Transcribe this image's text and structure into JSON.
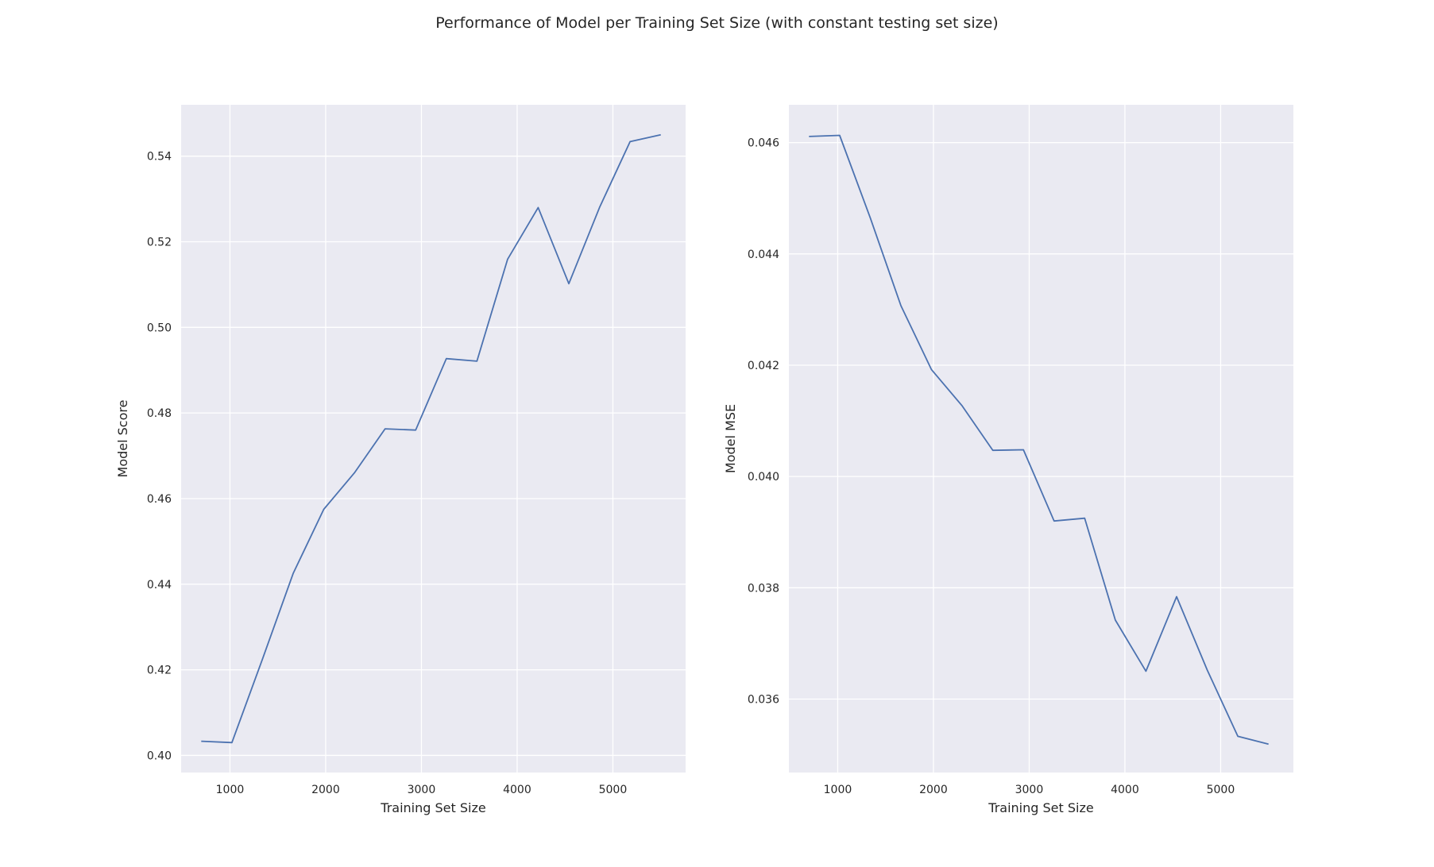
{
  "figure": {
    "suptitle": "Performance of Model per Training Set Size (with constant testing set size)"
  },
  "chart_data": [
    {
      "type": "line",
      "title": "",
      "xlabel": "Training Set Size",
      "ylabel": "Model Score",
      "xlim": [
        490,
        5760
      ],
      "ylim": [
        0.396,
        0.552
      ],
      "xticks": [
        1000,
        2000,
        3000,
        4000,
        5000
      ],
      "yticks": [
        0.4,
        0.42,
        0.44,
        0.46,
        0.48,
        0.5,
        0.52,
        0.54
      ],
      "ytick_decimals": 2,
      "grid": true,
      "line_color": "#4c72b0",
      "background": "#eaeaf2",
      "series": [
        {
          "x": [
            700,
            1020,
            1340,
            1660,
            1980,
            2300,
            2620,
            2940,
            3260,
            3580,
            3900,
            4220,
            4540,
            4860,
            5180,
            5500
          ],
          "values": [
            0.4033,
            0.403,
            0.4225,
            0.4425,
            0.4575,
            0.466,
            0.4763,
            0.476,
            0.4927,
            0.4921,
            0.5159,
            0.528,
            0.5102,
            0.528,
            0.5434,
            0.545
          ]
        }
      ]
    },
    {
      "type": "line",
      "title": "",
      "xlabel": "Training Set Size",
      "ylabel": "Model MSE",
      "xlim": [
        490,
        5760
      ],
      "ylim": [
        0.03468,
        0.04668
      ],
      "xticks": [
        1000,
        2000,
        3000,
        4000,
        5000
      ],
      "yticks": [
        0.036,
        0.038,
        0.04,
        0.042,
        0.044,
        0.046
      ],
      "ytick_decimals": 3,
      "grid": true,
      "line_color": "#4c72b0",
      "background": "#eaeaf2",
      "series": [
        {
          "x": [
            700,
            1020,
            1340,
            1660,
            1980,
            2300,
            2620,
            2940,
            3260,
            3580,
            3900,
            4220,
            4540,
            4860,
            5180,
            5500
          ],
          "values": [
            0.04611,
            0.04613,
            0.04465,
            0.04307,
            0.04192,
            0.04127,
            0.04047,
            0.04048,
            0.0392,
            0.03925,
            0.03742,
            0.0365,
            0.03784,
            0.03652,
            0.03533,
            0.03519
          ]
        }
      ]
    }
  ]
}
